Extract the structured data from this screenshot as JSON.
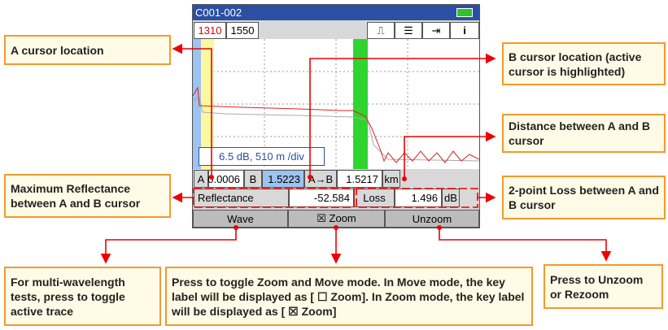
{
  "screen": {
    "title": "C001-002",
    "tabs": [
      "1310",
      "1550"
    ],
    "scale_label": "6.5 dB, 510 m /div",
    "row1": [
      "A",
      "0.0006",
      "B",
      "1.5223",
      "A→B",
      "1.5217",
      "km"
    ],
    "row2": [
      "Reflectance",
      "-52.584",
      "Loss",
      "1.496",
      "dB"
    ],
    "keys": [
      "Wave",
      "☒ Zoom",
      "Unzoom"
    ]
  },
  "callouts": [
    "A cursor location",
    "B cursor location (active cursor is highlighted)",
    "Distance between A and B cursor",
    "Maximum Reflectance between A and B cursor",
    "2-point Loss between A and B cursor",
    "For multi-wavelength tests, press to toggle active trace",
    "Press to toggle Zoom and Move mode. In Move mode, the key label will be displayed as [ ☐ Zoom]. In Zoom mode, the key label will be displayed as [ ☒ Zoom]",
    "Press to Unzoom or Rezoom"
  ]
}
